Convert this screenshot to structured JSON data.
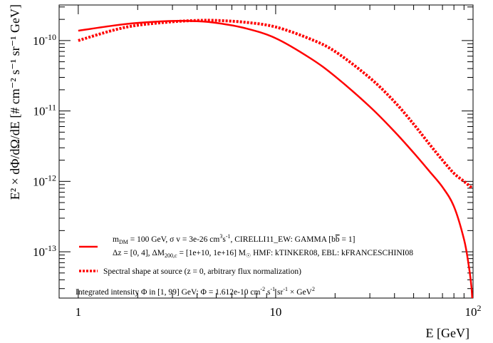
{
  "chart_data": {
    "type": "line",
    "xlabel": "E [GeV]",
    "ylabel": "E² × dΦ/dΩ/dE [# cm⁻² s⁻¹ sr⁻¹ GeV]",
    "x_scale": "log",
    "y_scale": "log",
    "xlim": [
      0.8,
      100
    ],
    "ylim": [
      2.2e-14,
      3.2e-10
    ],
    "x_ticks": [
      {
        "value": 1,
        "label": "1"
      },
      {
        "value": 10,
        "label": "10"
      },
      {
        "value": 100,
        "label": "10²"
      }
    ],
    "y_ticks": [
      {
        "value": 1e-13,
        "label": "10⁻¹³"
      },
      {
        "value": 1e-12,
        "label": "10⁻¹²"
      },
      {
        "value": 1e-11,
        "label": "10⁻¹¹"
      },
      {
        "value": 1e-10,
        "label": "10⁻¹⁰"
      }
    ],
    "grid": false,
    "legend_position": "bottom-left",
    "series": [
      {
        "style": "solid",
        "color": "#ff0000",
        "x": [
          1.0,
          1.5,
          2.0,
          3.0,
          4.0,
          5.0,
          7.0,
          10.0,
          15.0,
          20.0,
          30.0,
          40.0,
          50.0,
          60.0,
          70.0,
          80.0,
          90.0,
          95.0,
          98.0,
          99.0
        ],
        "y": [
          1.38e-10,
          1.63e-10,
          1.78e-10,
          1.9e-10,
          1.88e-10,
          1.78e-10,
          1.5e-10,
          1.08e-10,
          5.6e-11,
          3.1e-11,
          1.15e-11,
          5.1e-12,
          2.55e-12,
          1.4e-12,
          8.3e-13,
          4.4e-13,
          1.5e-13,
          6.5e-14,
          3.3e-14,
          2.2e-14
        ]
      },
      {
        "style": "dotted",
        "color": "#ff0000",
        "x": [
          1.0,
          1.5,
          2.0,
          3.0,
          4.0,
          5.0,
          7.0,
          10.0,
          15.0,
          20.0,
          30.0,
          40.0,
          50.0,
          60.0,
          70.0,
          80.0,
          90.0,
          99.0
        ],
        "y": [
          1e-10,
          1.4e-10,
          1.65e-10,
          1.85e-10,
          1.93e-10,
          1.93e-10,
          1.82e-10,
          1.56e-10,
          1.05e-10,
          7e-11,
          2.95e-11,
          1.35e-11,
          6.5e-12,
          3.4e-12,
          2e-12,
          1.3e-12,
          1e-12,
          8e-13
        ]
      }
    ],
    "legend": {
      "line1": {
        "m": "m",
        "m_sub": "DM",
        "mass": " = 100 GeV, σ v = 3e-26 cm",
        "cm_exp": "3",
        "s": "s",
        "s_exp": "-1",
        "rest": ", CIRELLI11_EW: GAMMA [b",
        "bbar": "b",
        "bbar_end": " = 1]"
      },
      "line2": {
        "a": "Δz = [0, 4], ΔM",
        "a_sub": "200,c",
        "b": " = [1e+10, 1e+16] M",
        "sun": "☉",
        "c": " HMF: kTINKER08, EBL: kFRANCESCHINI08"
      },
      "line3": "Spectral shape at source (z = 0, arbitrary flux normalization)",
      "line4": {
        "a": "Integrated intensity Φ in [1, 99] GeV: Φ = 1.612e-10 cm",
        "e1": "-2",
        "b": " s",
        "e2": "-1",
        "c": " sr",
        "e3": "-1",
        "d": " × GeV",
        "e4": "2"
      }
    }
  }
}
